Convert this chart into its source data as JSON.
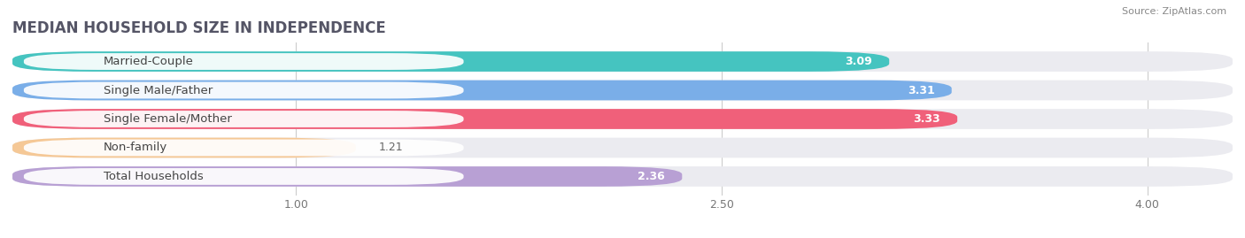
{
  "title": "MEDIAN HOUSEHOLD SIZE IN INDEPENDENCE",
  "source": "Source: ZipAtlas.com",
  "categories": [
    "Married-Couple",
    "Single Male/Father",
    "Single Female/Mother",
    "Non-family",
    "Total Households"
  ],
  "values": [
    3.09,
    3.31,
    3.33,
    1.21,
    2.36
  ],
  "bar_colors": [
    "#45c4c0",
    "#7aaee8",
    "#f0607a",
    "#f5c896",
    "#b8a0d4"
  ],
  "xlim": [
    0.0,
    4.3
  ],
  "xmin": 0.0,
  "xmax": 4.3,
  "data_min": 0.0,
  "data_max": 4.0,
  "xticks": [
    1.0,
    2.5,
    4.0
  ],
  "background_color": "#ffffff",
  "bar_bg_color": "#ebebf0",
  "title_fontsize": 12,
  "label_fontsize": 9.5,
  "value_fontsize": 9,
  "bar_height": 0.7,
  "bar_gap": 0.15
}
